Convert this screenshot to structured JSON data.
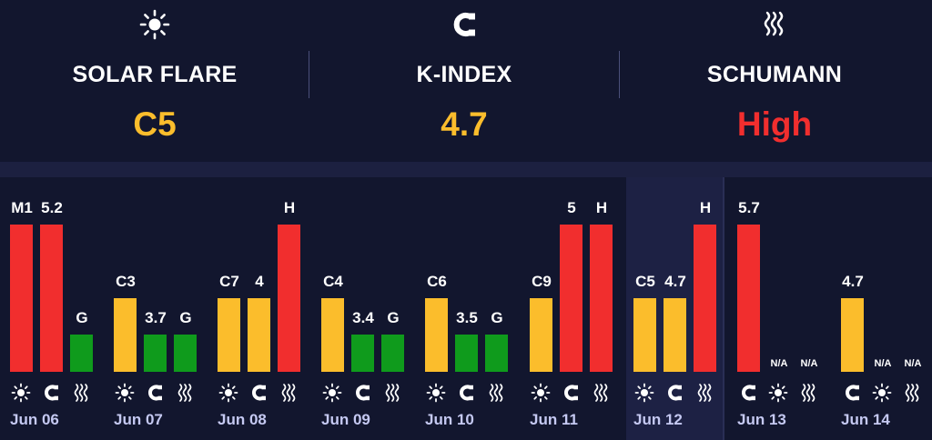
{
  "colors": {
    "red": "#f12e2e",
    "yellow": "#fbbd2c",
    "green": "#0f9b1c",
    "background": "#12162e",
    "highlight": "#1d2144",
    "date_text": "#c5c9f2"
  },
  "summary": [
    {
      "icon": "sun-icon",
      "label": "SOLAR FLARE",
      "value": "C5",
      "color": "#fbbd2c"
    },
    {
      "icon": "magnet-icon",
      "label": "K-INDEX",
      "value": "4.7",
      "color": "#fbbd2c"
    },
    {
      "icon": "waves-icon",
      "label": "SCHUMANN",
      "value": "High",
      "color": "#f12e2e"
    }
  ],
  "days": [
    {
      "date": "Jun 06",
      "bars": [
        {
          "metric": "solar",
          "icon": "sun-icon",
          "label": "M1",
          "level": 1.0,
          "color": "red"
        },
        {
          "metric": "kindex",
          "icon": "magnet-icon",
          "label": "5.2",
          "level": 1.0,
          "color": "red"
        },
        {
          "metric": "schumann",
          "icon": "waves-icon",
          "label": "G",
          "level": 0.25,
          "color": "green"
        }
      ]
    },
    {
      "date": "Jun 07",
      "bars": [
        {
          "metric": "solar",
          "icon": "sun-icon",
          "label": "C3",
          "level": 0.5,
          "color": "yellow"
        },
        {
          "metric": "kindex",
          "icon": "magnet-icon",
          "label": "3.7",
          "level": 0.25,
          "color": "green"
        },
        {
          "metric": "schumann",
          "icon": "waves-icon",
          "label": "G",
          "level": 0.25,
          "color": "green"
        }
      ]
    },
    {
      "date": "Jun 08",
      "bars": [
        {
          "metric": "solar",
          "icon": "sun-icon",
          "label": "C7",
          "level": 0.5,
          "color": "yellow"
        },
        {
          "metric": "kindex",
          "icon": "magnet-icon",
          "label": "4",
          "level": 0.5,
          "color": "yellow"
        },
        {
          "metric": "schumann",
          "icon": "waves-icon",
          "label": "H",
          "level": 1.0,
          "color": "red"
        }
      ]
    },
    {
      "date": "Jun 09",
      "bars": [
        {
          "metric": "solar",
          "icon": "sun-icon",
          "label": "C4",
          "level": 0.5,
          "color": "yellow"
        },
        {
          "metric": "kindex",
          "icon": "magnet-icon",
          "label": "3.4",
          "level": 0.25,
          "color": "green"
        },
        {
          "metric": "schumann",
          "icon": "waves-icon",
          "label": "G",
          "level": 0.25,
          "color": "green"
        }
      ]
    },
    {
      "date": "Jun 10",
      "bars": [
        {
          "metric": "solar",
          "icon": "sun-icon",
          "label": "C6",
          "level": 0.5,
          "color": "yellow"
        },
        {
          "metric": "kindex",
          "icon": "magnet-icon",
          "label": "3.5",
          "level": 0.25,
          "color": "green"
        },
        {
          "metric": "schumann",
          "icon": "waves-icon",
          "label": "G",
          "level": 0.25,
          "color": "green"
        }
      ]
    },
    {
      "date": "Jun 11",
      "bars": [
        {
          "metric": "solar",
          "icon": "sun-icon",
          "label": "C9",
          "level": 0.5,
          "color": "yellow"
        },
        {
          "metric": "kindex",
          "icon": "magnet-icon",
          "label": "5",
          "level": 1.0,
          "color": "red"
        },
        {
          "metric": "schumann",
          "icon": "waves-icon",
          "label": "H",
          "level": 1.0,
          "color": "red"
        }
      ]
    },
    {
      "date": "Jun 12",
      "bars": [
        {
          "metric": "solar",
          "icon": "sun-icon",
          "label": "C5",
          "level": 0.5,
          "color": "yellow"
        },
        {
          "metric": "kindex",
          "icon": "magnet-icon",
          "label": "4.7",
          "level": 0.5,
          "color": "yellow"
        },
        {
          "metric": "schumann",
          "icon": "waves-icon",
          "label": "H",
          "level": 1.0,
          "color": "red"
        }
      ]
    },
    {
      "date": "Jun 13",
      "bars": [
        {
          "metric": "kindex",
          "icon": "magnet-icon",
          "label": "5.7",
          "level": 1.0,
          "color": "red"
        },
        {
          "metric": "solar",
          "icon": "sun-icon",
          "label": "N/A",
          "level": 0,
          "color": ""
        },
        {
          "metric": "schumann",
          "icon": "waves-icon",
          "label": "N/A",
          "level": 0,
          "color": ""
        }
      ]
    },
    {
      "date": "Jun 14",
      "bars": [
        {
          "metric": "kindex",
          "icon": "magnet-icon",
          "label": "4.7",
          "level": 0.5,
          "color": "yellow"
        },
        {
          "metric": "solar",
          "icon": "sun-icon",
          "label": "N/A",
          "level": 0,
          "color": ""
        },
        {
          "metric": "schumann",
          "icon": "waves-icon",
          "label": "N/A",
          "level": 0,
          "color": ""
        }
      ]
    }
  ]
}
